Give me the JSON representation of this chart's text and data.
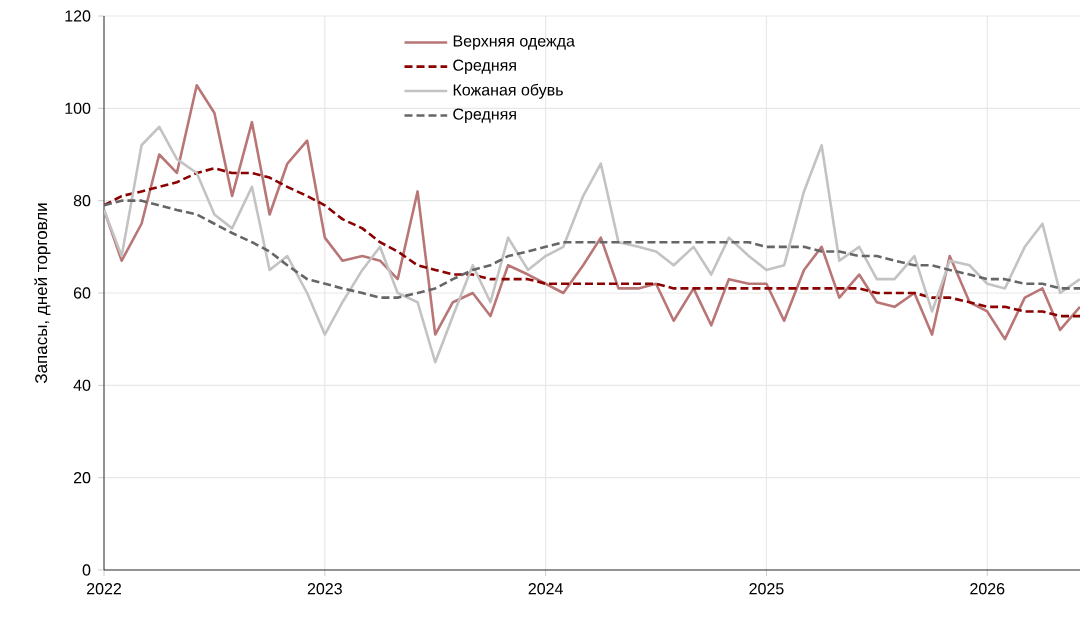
{
  "chart_data": {
    "type": "line",
    "ylabel": "Запасы, дней торговли",
    "x": [
      "2022-01",
      "2022-02",
      "2022-03",
      "2022-04",
      "2022-05",
      "2022-06",
      "2022-07",
      "2022-08",
      "2022-09",
      "2022-10",
      "2022-11",
      "2022-12",
      "2023-01",
      "2023-02",
      "2023-03",
      "2023-04",
      "2023-05",
      "2023-06",
      "2023-07",
      "2023-08",
      "2023-09",
      "2023-10",
      "2023-11",
      "2023-12",
      "2024-01",
      "2024-02",
      "2024-03",
      "2024-04",
      "2024-05",
      "2024-06",
      "2024-07",
      "2024-08",
      "2024-09",
      "2024-10",
      "2024-11",
      "2024-12",
      "2025-01",
      "2025-02",
      "2025-03",
      "2025-04",
      "2025-05",
      "2025-06",
      "2025-07",
      "2025-08",
      "2025-09",
      "2025-10",
      "2025-11",
      "2025-12",
      "2026-01",
      "2026-02",
      "2026-03",
      "2026-04",
      "2026-05",
      "2026-06"
    ],
    "series": [
      {
        "name": "Верхняя одежда",
        "color": "#b97676",
        "line_style": "solid",
        "values": [
          78,
          67,
          75,
          90,
          86,
          105,
          99,
          81,
          97,
          77,
          88,
          93,
          72,
          67,
          68,
          67,
          63,
          82,
          51,
          58,
          60,
          55,
          66,
          64,
          62,
          60,
          66,
          72,
          61,
          61,
          62,
          54,
          61,
          53,
          63,
          62,
          62,
          54,
          65,
          70,
          59,
          64,
          58,
          57,
          60,
          51,
          68,
          58,
          56,
          50,
          59,
          61,
          52,
          57
        ]
      },
      {
        "name": "Средняя",
        "color": "#8b0000",
        "line_style": "dashed",
        "values": [
          79,
          81,
          82,
          83,
          84,
          86,
          87,
          86,
          86,
          85,
          83,
          81,
          79,
          76,
          74,
          71,
          69,
          66,
          65,
          64,
          64,
          63,
          63,
          63,
          62,
          62,
          62,
          62,
          62,
          62,
          62,
          61,
          61,
          61,
          61,
          61,
          61,
          61,
          61,
          61,
          61,
          61,
          60,
          60,
          60,
          59,
          59,
          58,
          57,
          57,
          56,
          56,
          55,
          55
        ]
      },
      {
        "name": "Кожаная обувь",
        "color": "#c3c3c3",
        "line_style": "solid",
        "values": [
          78,
          68,
          92,
          96,
          89,
          86,
          77,
          74,
          83,
          65,
          68,
          60,
          51,
          58,
          65,
          70,
          60,
          58,
          45,
          55,
          66,
          58,
          72,
          65,
          68,
          70,
          81,
          88,
          71,
          70,
          69,
          66,
          70,
          64,
          72,
          68,
          65,
          66,
          82,
          92,
          67,
          70,
          63,
          63,
          68,
          56,
          67,
          66,
          62,
          61,
          70,
          75,
          60,
          63
        ]
      },
      {
        "name": "Средняя",
        "color": "#666666",
        "line_style": "dashed",
        "values": [
          79,
          80,
          80,
          79,
          78,
          77,
          75,
          73,
          71,
          69,
          66,
          63,
          62,
          61,
          60,
          59,
          59,
          60,
          61,
          63,
          65,
          66,
          68,
          69,
          70,
          71,
          71,
          71,
          71,
          71,
          71,
          71,
          71,
          71,
          71,
          71,
          70,
          70,
          70,
          69,
          69,
          68,
          68,
          67,
          66,
          66,
          65,
          64,
          63,
          63,
          62,
          62,
          61,
          61
        ]
      }
    ],
    "xlim": [
      "2022-01",
      "2026-06"
    ],
    "xticks": [
      "2022",
      "2023",
      "2024",
      "2025",
      "2026"
    ],
    "ylim": [
      0,
      120
    ],
    "yticks": [
      0,
      20,
      40,
      60,
      80,
      100,
      120
    ],
    "grid": true,
    "legend": "top",
    "marker": "none"
  }
}
